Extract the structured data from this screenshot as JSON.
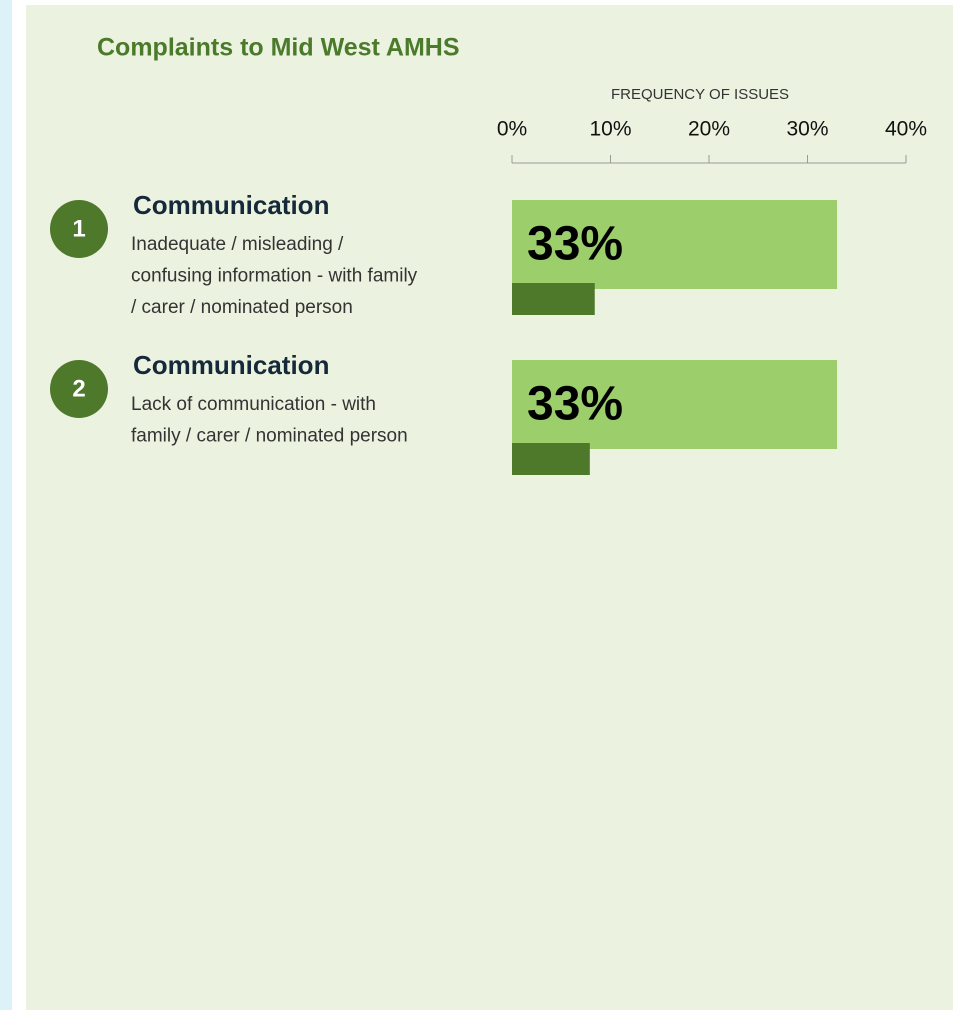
{
  "chart_data": {
    "type": "bar",
    "title": "Complaints to Mid West AMHS",
    "xlabel": "FREQUENCY OF ISSUES",
    "xlim": [
      0,
      40
    ],
    "xticks": [
      {
        "value": 0,
        "label": "0%"
      },
      {
        "value": 10,
        "label": "10%"
      },
      {
        "value": 20,
        "label": "20%"
      },
      {
        "value": 30,
        "label": "30%"
      },
      {
        "value": 40,
        "label": "40%"
      }
    ],
    "ranks": [
      "1",
      "2"
    ],
    "categories": [
      "Communication",
      "Communication"
    ],
    "descriptions": [
      [
        "Inadequate / misleading /",
        "confusing information - with family",
        "/ carer / nominated person"
      ],
      [
        "Lack of communication - with",
        "family / carer / nominated person"
      ]
    ],
    "series": [
      {
        "color": "#9ccf6c",
        "values": [
          33,
          33
        ],
        "value_labels": [
          "33%",
          "33%"
        ]
      },
      {
        "color": "#4e782a",
        "values": [
          8.4,
          7.9
        ]
      }
    ],
    "rank_color": "#4e782a",
    "title_color": "#4a7a2a"
  }
}
